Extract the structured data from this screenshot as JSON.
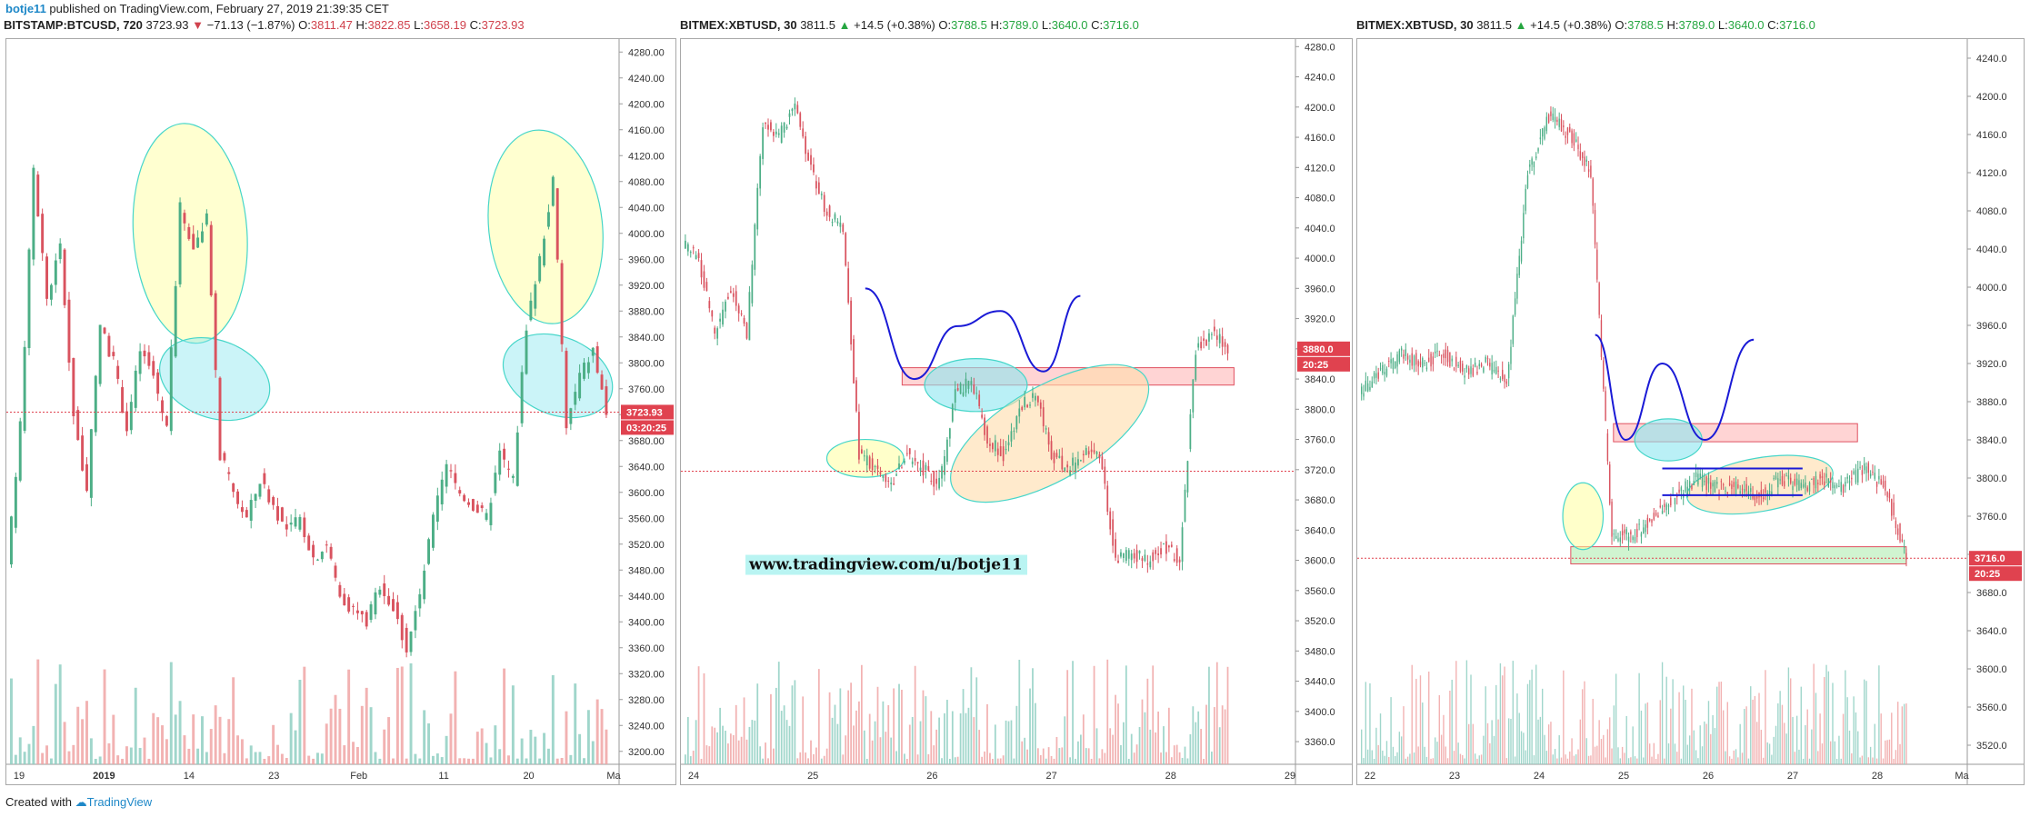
{
  "header": {
    "author": "botje11",
    "published": "published on TradingView.com, February 27, 2019 21:39:35 CET"
  },
  "footer": {
    "created_with": "Created with",
    "brand": "TradingView"
  },
  "watermark": "www.tradingview.com/u/botje11",
  "colors": {
    "up": "#4cae86",
    "down": "#d9535f",
    "vol_up": "#8fcfc2",
    "vol_down": "#f0a5a5",
    "price_tag": "#e0424f",
    "accent": "#1e88c8"
  },
  "chart_data": [
    {
      "type": "candlestick",
      "symbol": "BITSTAMP:BTCUSD, 720",
      "ohlc_text": {
        "last": "3723.93",
        "change": "−71.13 (−1.87%)",
        "o_label": "O:",
        "o": "3811.47",
        "h_label": "H:",
        "h": "3822.85",
        "l_label": "L:",
        "l": "3658.19",
        "c_label": "C:",
        "c": "3723.93"
      },
      "direction": "down",
      "ylim": [
        3180,
        4300
      ],
      "yticks": [
        4280.0,
        4240.0,
        4200.0,
        4160.0,
        4120.0,
        4080.0,
        4040.0,
        4000.0,
        3960.0,
        3920.0,
        3880.0,
        3840.0,
        3800.0,
        3760.0,
        3720.0,
        3680.0,
        3640.0,
        3600.0,
        3560.0,
        3520.0,
        3480.0,
        3440.0,
        3400.0,
        3360.0,
        3320.0,
        3280.0,
        3240.0,
        3200.0
      ],
      "ytick_decimals": 2,
      "xticks": [
        "19",
        "2019",
        "14",
        "23",
        "Feb",
        "11",
        "20",
        "Ma"
      ],
      "price_tag": "3723.93",
      "time_tag": "03:20:25",
      "path": [
        3480,
        3700,
        4100,
        3900,
        3980,
        3720,
        3600,
        3860,
        3800,
        3700,
        3820,
        3780,
        3700,
        4040,
        3980,
        4020,
        3660,
        3600,
        3560,
        3620,
        3580,
        3540,
        3560,
        3500,
        3520,
        3440,
        3420,
        3400,
        3460,
        3420,
        3360,
        3440,
        3560,
        3640,
        3600,
        3580,
        3560,
        3660,
        3620,
        3860,
        3960,
        4080,
        3700,
        3780,
        3820,
        3723
      ],
      "candles_per_seg": 3,
      "xlim_candles": 138,
      "volume_max": 1.0,
      "annotations": [
        {
          "kind": "ellipse",
          "cx": 0.3,
          "cy": 4000,
          "rx_c": 8,
          "ry_p": 170,
          "fill": "rgba(255,255,150,0.45)",
          "stroke": "#46d6c9",
          "rot": -4
        },
        {
          "kind": "ellipse",
          "cx": 0.34,
          "cy": 3775,
          "rx_c": 8,
          "ry_p": 60,
          "fill": "rgba(140,230,240,0.45)",
          "stroke": "#46d6c9",
          "rot": 20
        },
        {
          "kind": "ellipse",
          "cx": 0.88,
          "cy": 4010,
          "rx_c": 8,
          "ry_p": 150,
          "fill": "rgba(255,255,150,0.45)",
          "stroke": "#46d6c9",
          "rot": -6
        },
        {
          "kind": "ellipse",
          "cx": 0.9,
          "cy": 3780,
          "rx_c": 8,
          "ry_p": 60,
          "fill": "rgba(140,230,240,0.45)",
          "stroke": "#46d6c9",
          "rot": 22
        }
      ]
    },
    {
      "type": "candlestick",
      "symbol": "BITMEX:XBTUSD, 30",
      "ohlc_text": {
        "last": "3811.5",
        "change": "+14.5 (+0.38%)",
        "o_label": "O:",
        "o": "3788.5",
        "h_label": "H:",
        "h": "3789.0",
        "l_label": "L:",
        "l": "3640.0",
        "c_label": "C:",
        "c": "3716.0"
      },
      "direction": "up",
      "ylim": [
        3330,
        4290
      ],
      "yticks": [
        4280.0,
        4240.0,
        4200.0,
        4160.0,
        4120.0,
        4080.0,
        4040.0,
        4000.0,
        3960.0,
        3920.0,
        3880.0,
        3840.0,
        3800.0,
        3760.0,
        3720.0,
        3680.0,
        3640.0,
        3600.0,
        3560.0,
        3520.0,
        3480.0,
        3440.0,
        3400.0,
        3360.0
      ],
      "ytick_decimals": 1,
      "xticks": [
        "24",
        "25",
        "26",
        "27",
        "28",
        "29"
      ],
      "price_tag": "3880.0",
      "time_tag": "20:25",
      "path": [
        4020,
        4000,
        3900,
        3960,
        3900,
        4180,
        4160,
        4200,
        4120,
        4060,
        4040,
        3740,
        3720,
        3700,
        3740,
        3720,
        3700,
        3820,
        3840,
        3760,
        3740,
        3800,
        3820,
        3740,
        3720,
        3740,
        3740,
        3600,
        3610,
        3600,
        3620,
        3600,
        3880,
        3900,
        3880
      ],
      "candles_per_seg": 6,
      "xlim_candles": 230,
      "annotations": [
        {
          "kind": "rect",
          "p1": 3855,
          "p2": 3832,
          "x1": 0.36,
          "x2": 0.9,
          "fill": "rgba(255,160,160,0.45)",
          "stroke": "#e05060"
        },
        {
          "kind": "ellipse",
          "cx": 0.3,
          "cy": 3735,
          "rx_c": 9,
          "ry_p": 25,
          "fill": "rgba(255,255,150,0.5)",
          "stroke": "#46d6c9",
          "rot": 0
        },
        {
          "kind": "ellipse",
          "cx": 0.48,
          "cy": 3832,
          "rx_c": 12,
          "ry_p": 35,
          "fill": "rgba(140,230,240,0.6)",
          "stroke": "#46d6c9",
          "rot": 0
        },
        {
          "kind": "ellipse",
          "cx": 0.6,
          "cy": 3768,
          "rx_c": 26,
          "ry_p": 62,
          "fill": "rgba(255,220,170,0.6)",
          "stroke": "#46d6c9",
          "rot": -30
        },
        {
          "kind": "path",
          "pts": [
            [
              0.3,
              3960
            ],
            [
              0.38,
              3840
            ],
            [
              0.45,
              3910
            ],
            [
              0.52,
              3930
            ],
            [
              0.59,
              3850
            ],
            [
              0.65,
              3950
            ]
          ],
          "stroke": "#1a1ad6"
        }
      ],
      "hline": 3718
    },
    {
      "type": "candlestick",
      "symbol": "BITMEX:XBTUSD, 30",
      "ohlc_text": {
        "last": "3811.5",
        "change": "+14.5 (+0.38%)",
        "o_label": "O:",
        "o": "3788.5",
        "h_label": "H:",
        "h": "3789.0",
        "l_label": "L:",
        "l": "3640.0",
        "c_label": "C:",
        "c": "3716.0"
      },
      "direction": "up",
      "ylim": [
        3500,
        4260
      ],
      "yticks": [
        4240.0,
        4200.0,
        4160.0,
        4120.0,
        4080.0,
        4040.0,
        4000.0,
        3960.0,
        3920.0,
        3880.0,
        3840.0,
        3800.0,
        3760.0,
        3720.0,
        3680.0,
        3640.0,
        3600.0,
        3560.0,
        3520.0
      ],
      "ytick_decimals": 1,
      "xticks": [
        "22",
        "23",
        "24",
        "25",
        "26",
        "27",
        "28",
        "Ma"
      ],
      "price_tag": "3716.0",
      "time_tag": "20:25",
      "path": [
        3890,
        3910,
        3930,
        3920,
        3930,
        3910,
        3920,
        3900,
        4120,
        4180,
        4160,
        4120,
        3740,
        3740,
        3760,
        3780,
        3800,
        3790,
        3790,
        3780,
        3800,
        3790,
        3800,
        3790,
        3810,
        3790,
        3716
      ],
      "candles_per_seg": 10,
      "xlim_candles": 290,
      "annotations": [
        {
          "kind": "rect",
          "p1": 3857,
          "p2": 3838,
          "x1": 0.42,
          "x2": 0.82,
          "fill": "rgba(255,160,160,0.45)",
          "stroke": "#e05060"
        },
        {
          "kind": "rect",
          "p1": 3728,
          "p2": 3710,
          "x1": 0.35,
          "x2": 0.9,
          "fill": "rgba(170,235,170,0.55)",
          "stroke": "#e05060"
        },
        {
          "kind": "ellipse",
          "cx": 0.37,
          "cy": 3760,
          "rx_c": 6,
          "ry_p": 35,
          "fill": "rgba(255,255,150,0.5)",
          "stroke": "#46d6c9",
          "rot": 0
        },
        {
          "kind": "ellipse",
          "cx": 0.51,
          "cy": 3840,
          "rx_c": 10,
          "ry_p": 22,
          "fill": "rgba(140,230,240,0.6)",
          "stroke": "#46d6c9",
          "rot": 0
        },
        {
          "kind": "ellipse",
          "cx": 0.66,
          "cy": 3793,
          "rx_c": 22,
          "ry_p": 28,
          "fill": "rgba(255,220,170,0.6)",
          "stroke": "#46d6c9",
          "rot": -10
        },
        {
          "kind": "segment",
          "pts": [
            [
              0.5,
              3810
            ],
            [
              0.73,
              3810
            ]
          ],
          "stroke": "#1a1ad6"
        },
        {
          "kind": "segment",
          "pts": [
            [
              0.5,
              3782
            ],
            [
              0.73,
              3782
            ]
          ],
          "stroke": "#1a1ad6"
        },
        {
          "kind": "path",
          "pts": [
            [
              0.39,
              3950
            ],
            [
              0.44,
              3840
            ],
            [
              0.5,
              3920
            ],
            [
              0.57,
              3840
            ],
            [
              0.65,
              3945
            ]
          ],
          "stroke": "#1a1ad6"
        }
      ],
      "hline": 3716
    }
  ]
}
